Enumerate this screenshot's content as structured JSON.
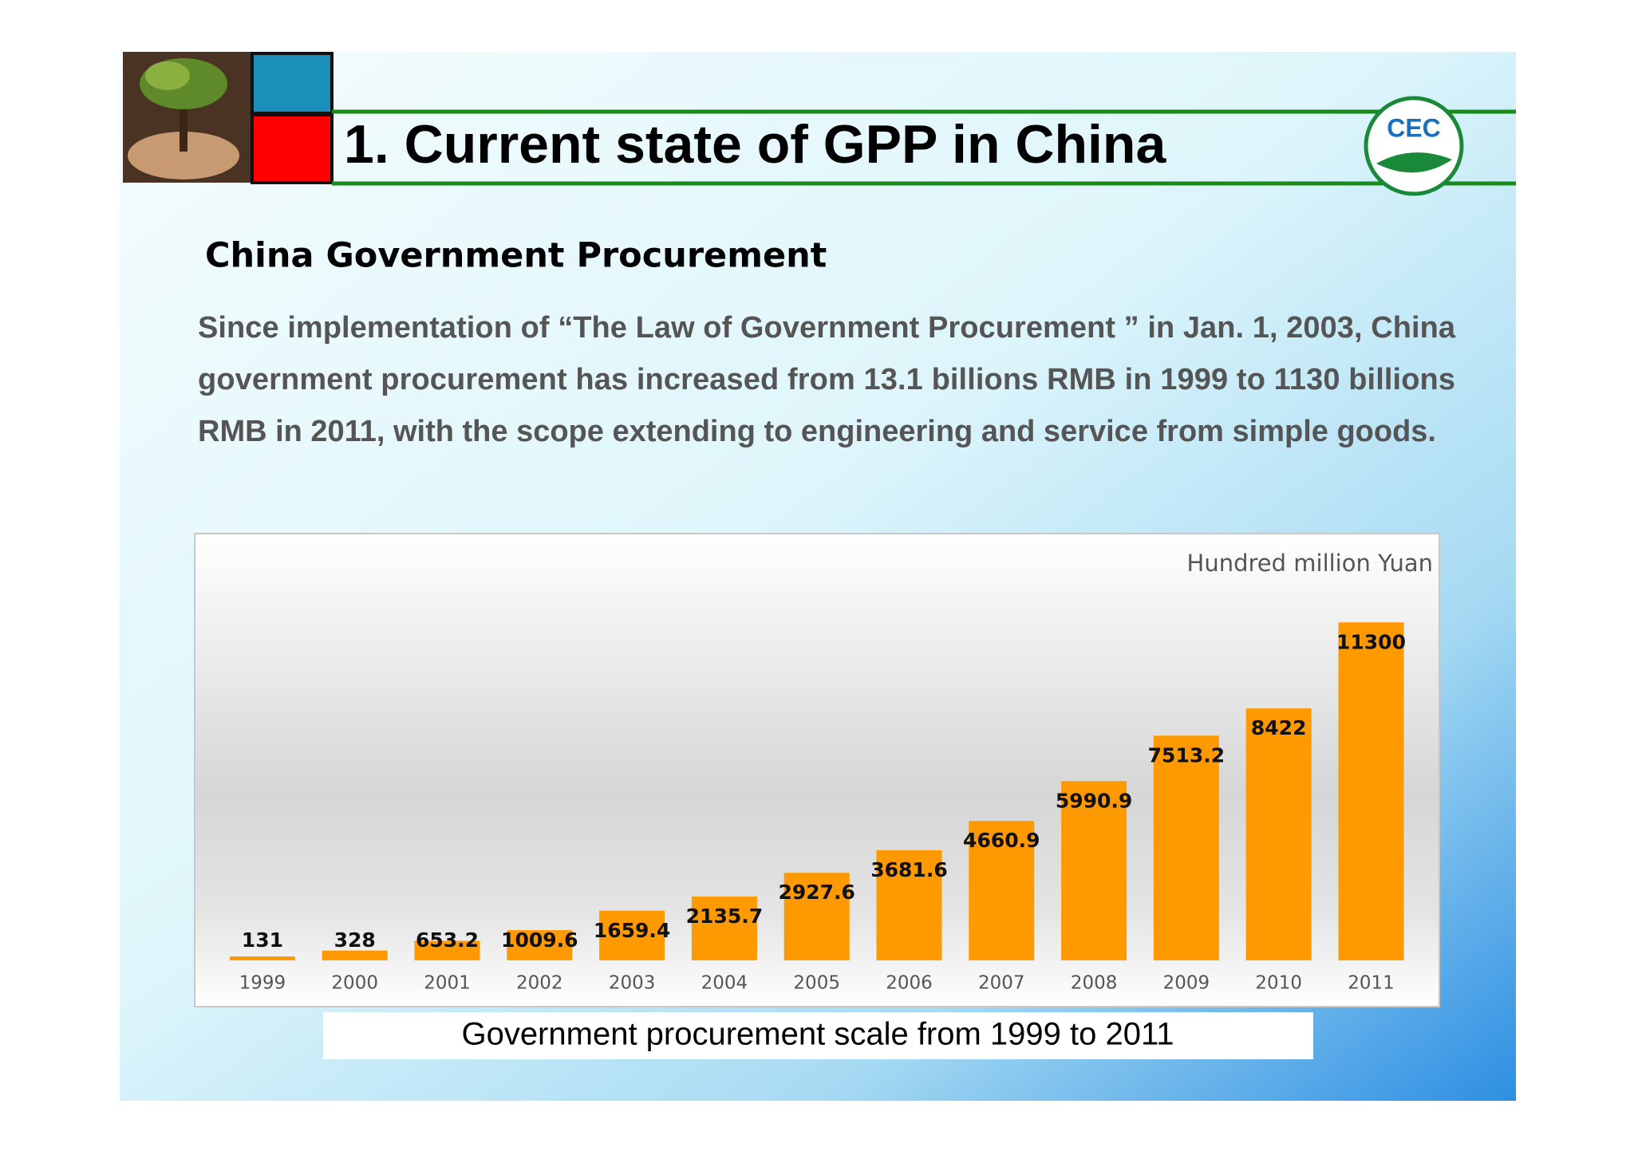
{
  "slide": {
    "title": "1. Current state of GPP in China",
    "logo": "CEC",
    "subtitle": "China Government Procurement",
    "paragraph_lines": [
      "Since implementation of “The Law of Government Procurement ” in Jan. 1, 2003, China",
      "government procurement has increased from 13.1 billions RMB in 1999 to 1130 billions",
      "RMB in 2011, with the scope extending to engineering and service from simple goods."
    ],
    "caption": "Government procurement scale from 1999 to 2011"
  },
  "chart_data": {
    "type": "bar",
    "unit_label": "Hundred million Yuan",
    "categories": [
      "1999",
      "2000",
      "2001",
      "2002",
      "2003",
      "2004",
      "2005",
      "2006",
      "2007",
      "2008",
      "2009",
      "2010",
      "2011"
    ],
    "values": [
      131,
      328,
      653.2,
      1009.6,
      1659.4,
      2135.7,
      2927.6,
      3681.6,
      4660.9,
      5990.9,
      7513.2,
      8422,
      11300
    ],
    "color": "#ff9900",
    "ylim": [
      0,
      12000
    ]
  }
}
